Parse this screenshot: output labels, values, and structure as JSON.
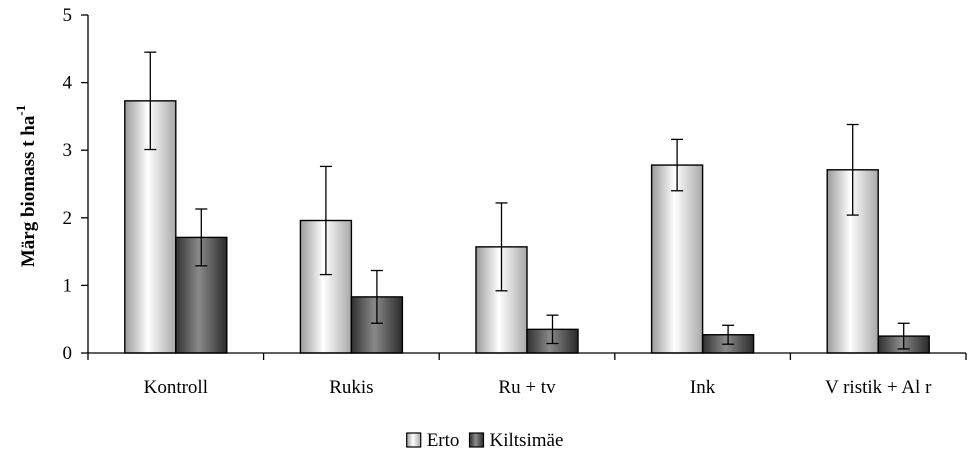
{
  "chart_data": {
    "type": "bar",
    "title": "",
    "xlabel": "",
    "ylabel": "Märg biomass t ha",
    "ylabel_superscript": "-1",
    "ylim": [
      0,
      5
    ],
    "yticks": [
      "0",
      "1",
      "2",
      "3",
      "4",
      "5"
    ],
    "grid": false,
    "legend_position": "bottom-center",
    "categories": [
      "Kontroll",
      "Rukis",
      "Ru + tv",
      "Ink",
      "V ristik + Al r"
    ],
    "series": [
      {
        "name": "Erto",
        "values": [
          3.73,
          1.96,
          1.57,
          2.78,
          2.71
        ],
        "error": [
          0.72,
          0.8,
          0.65,
          0.38,
          0.67
        ],
        "color": "#e4e4e4"
      },
      {
        "name": "Kiltsimäe",
        "values": [
          1.71,
          0.83,
          0.35,
          0.27,
          0.25
        ],
        "error": [
          0.42,
          0.39,
          0.21,
          0.14,
          0.19
        ],
        "color": "#5a5a5a"
      }
    ]
  }
}
